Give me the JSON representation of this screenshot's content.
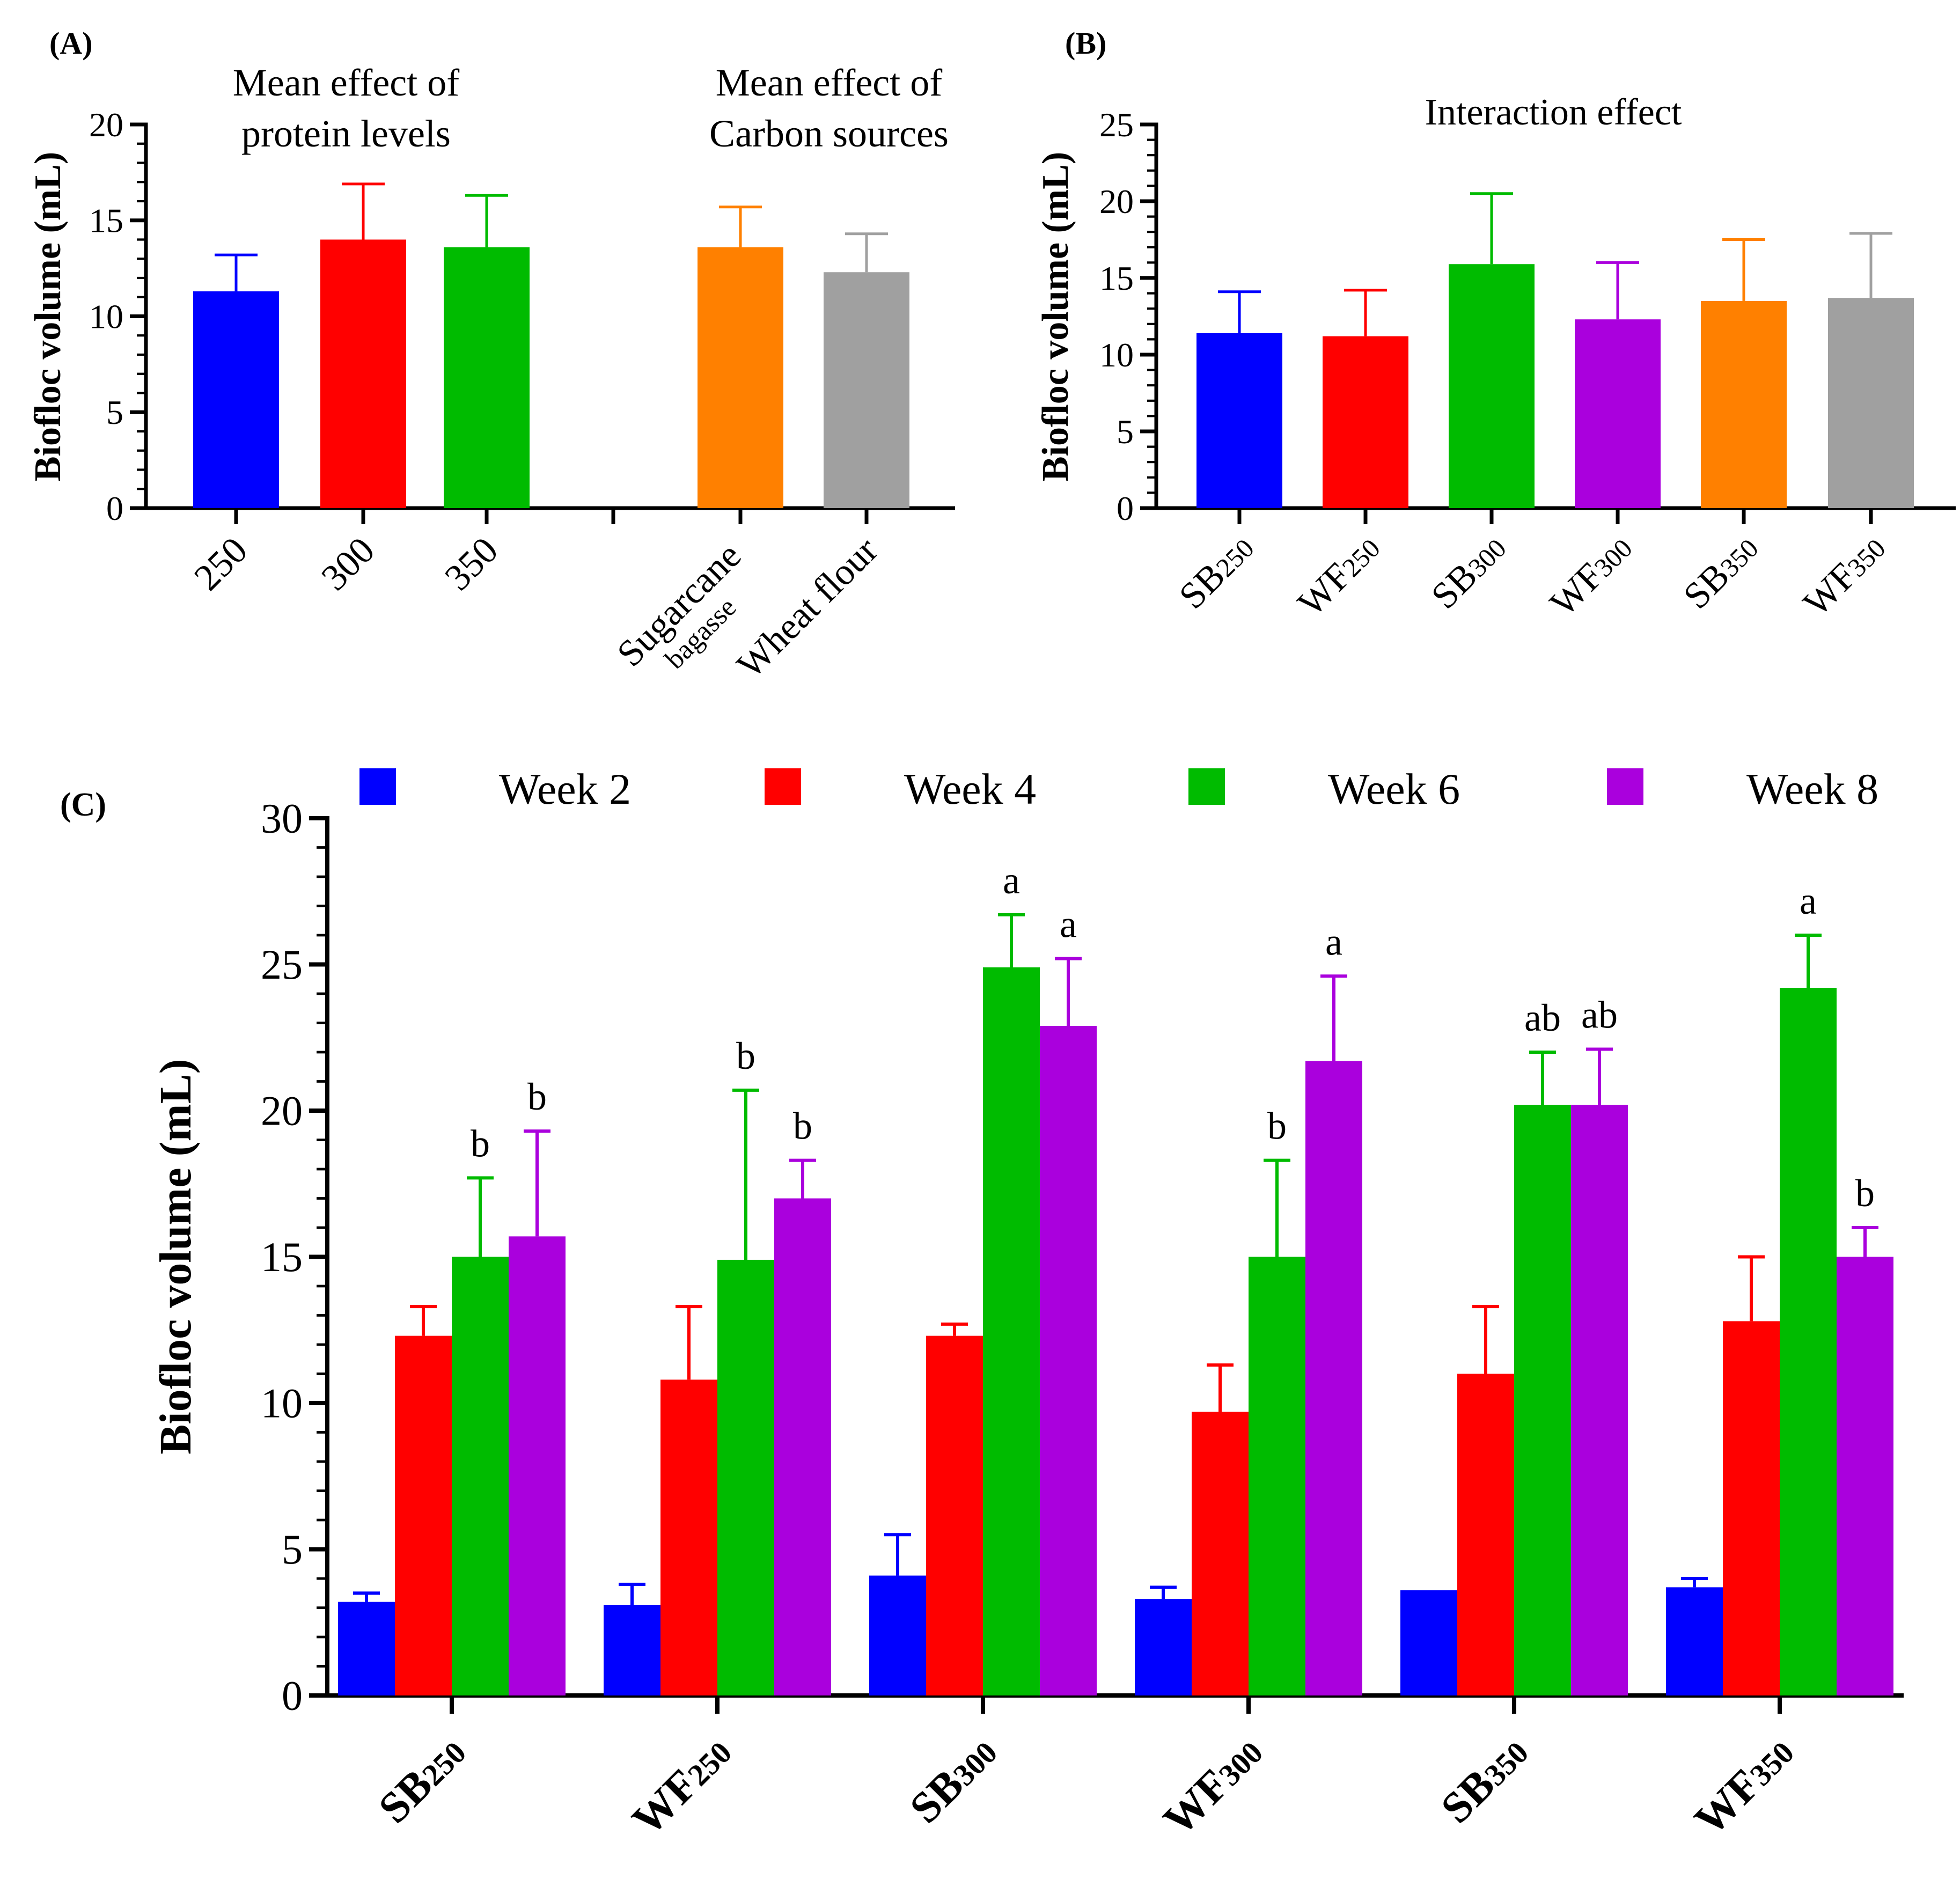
{
  "colors": {
    "blue": "#0000ff",
    "red": "#ff0000",
    "green": "#00bb00",
    "purple": "#aa00dd",
    "orange": "#ff8000",
    "gray": "#a0a0a0",
    "axis": "#000000"
  },
  "chart_data": [
    {
      "panel": "A",
      "panel_label": "(A)",
      "type": "bar",
      "ylabel": "Biofloc volume (mL)",
      "ylim": [
        0,
        20
      ],
      "yticks": [
        0,
        5,
        10,
        15,
        20
      ],
      "ytick_labels": [
        "0",
        "5",
        "10",
        "15",
        "20"
      ],
      "groups": [
        {
          "title_lines": [
            "Mean effect of",
            "protein levels"
          ],
          "bars": [
            {
              "label": "250",
              "value": 11.3,
              "error": 1.9,
              "color": "#0000ff"
            },
            {
              "label": "300",
              "value": 14.0,
              "error": 2.9,
              "color": "#ff0000"
            },
            {
              "label": "350",
              "value": 13.6,
              "error": 2.7,
              "color": "#00bb00"
            }
          ]
        },
        {
          "title_lines": [
            "Mean effect of",
            "Carbon sources"
          ],
          "bars": [
            {
              "label": "Sugarcane",
              "sublabel": "bagasse",
              "value": 13.6,
              "error": 2.1,
              "color": "#ff8000"
            },
            {
              "label": "Wheat flour",
              "value": 12.3,
              "error": 2.0,
              "color": "#a0a0a0"
            }
          ]
        }
      ]
    },
    {
      "panel": "B",
      "panel_label": "(B)",
      "type": "bar",
      "title": "Interaction effect",
      "ylabel": "Biofloc volume (mL)",
      "ylim": [
        0,
        25
      ],
      "yticks": [
        0,
        5,
        10,
        15,
        20,
        25
      ],
      "ytick_labels": [
        "0",
        "5",
        "10",
        "15",
        "20",
        "25"
      ],
      "bars": [
        {
          "main": "SB",
          "sub": "250",
          "value": 11.4,
          "error": 2.7,
          "color": "#0000ff"
        },
        {
          "main": "WF",
          "sub": "250",
          "value": 11.2,
          "error": 3.0,
          "color": "#ff0000"
        },
        {
          "main": "SB",
          "sub": "300",
          "value": 15.9,
          "error": 4.6,
          "color": "#00bb00"
        },
        {
          "main": "WF",
          "sub": "300",
          "value": 12.3,
          "error": 3.7,
          "color": "#aa00dd"
        },
        {
          "main": "SB",
          "sub": "350",
          "value": 13.5,
          "error": 4.0,
          "color": "#ff8000"
        },
        {
          "main": "WF",
          "sub": "350",
          "value": 13.7,
          "error": 4.2,
          "color": "#a0a0a0"
        }
      ]
    },
    {
      "panel": "C",
      "panel_label": "(C)",
      "type": "bar",
      "ylabel": "Biofloc volume (mL)",
      "ylim": [
        0,
        30
      ],
      "yticks": [
        0,
        5,
        10,
        15,
        20,
        25,
        30
      ],
      "ytick_labels": [
        "0",
        "5",
        "10",
        "15",
        "20",
        "25",
        "30"
      ],
      "categories": [
        {
          "main": "SB",
          "sub": "250"
        },
        {
          "main": "WF",
          "sub": "250"
        },
        {
          "main": "SB",
          "sub": "300"
        },
        {
          "main": "WF",
          "sub": "300"
        },
        {
          "main": "SB",
          "sub": "350"
        },
        {
          "main": "WF",
          "sub": "350"
        }
      ],
      "legend_position": "top",
      "series": [
        {
          "name": "Week 2",
          "color": "#0000ff",
          "values": [
            3.2,
            3.1,
            4.1,
            3.3,
            3.6,
            3.7
          ],
          "errors": [
            0.3,
            0.7,
            1.4,
            0.4,
            0.0,
            0.3
          ],
          "letters": [
            "",
            "",
            "",
            "",
            "",
            ""
          ]
        },
        {
          "name": "Week 4",
          "color": "#ff0000",
          "values": [
            12.3,
            10.8,
            12.3,
            9.7,
            11.0,
            12.8
          ],
          "errors": [
            1.0,
            2.5,
            0.4,
            1.6,
            2.3,
            2.2
          ],
          "letters": [
            "",
            "",
            "",
            "",
            "",
            ""
          ]
        },
        {
          "name": "Week 6",
          "color": "#00bb00",
          "values": [
            15.0,
            14.9,
            24.9,
            15.0,
            20.2,
            24.2
          ],
          "errors": [
            2.7,
            5.8,
            1.8,
            3.3,
            1.8,
            1.8
          ],
          "letters": [
            "b",
            "b",
            "a",
            "b",
            "ab",
            "a"
          ]
        },
        {
          "name": "Week 8",
          "color": "#aa00dd",
          "values": [
            15.7,
            17.0,
            22.9,
            21.7,
            20.2,
            15.0
          ],
          "errors": [
            3.6,
            1.3,
            2.3,
            2.9,
            1.9,
            1.0
          ],
          "letters": [
            "b",
            "b",
            "a",
            "a",
            "ab",
            "b"
          ]
        }
      ]
    }
  ]
}
